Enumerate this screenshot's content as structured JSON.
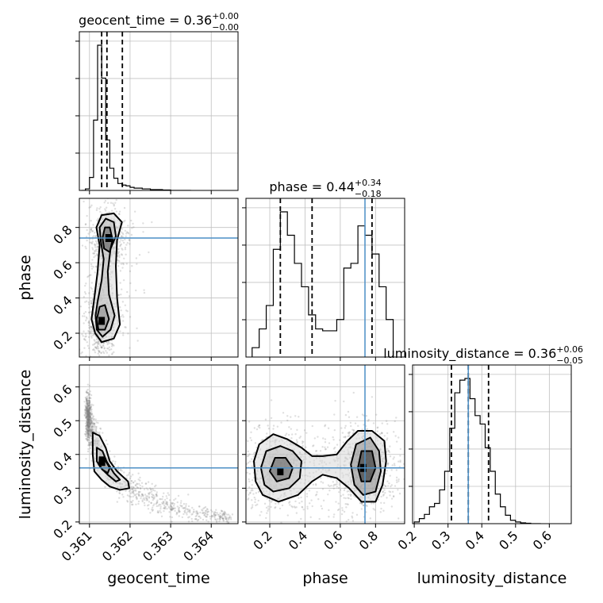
{
  "chart_data": {
    "type": "corner",
    "colors": {
      "truth": "#4c8fc5",
      "hist": "#000000",
      "grid": "#c0c0c0",
      "points": "#808080"
    },
    "params": [
      "geocent_time",
      "phase",
      "luminosity_distance"
    ],
    "truths": {
      "phase": 0.74,
      "luminosity_distance": 0.36
    },
    "ranges": {
      "geocent_time": [
        0.36075,
        0.36466
      ],
      "phase": [
        0.065,
        0.965
      ],
      "luminosity_distance": [
        0.195,
        0.665
      ]
    },
    "ticks": {
      "geocent_time": [
        {
          "v": 0.361,
          "label": "0.361"
        },
        {
          "v": 0.362,
          "label": "0.362"
        },
        {
          "v": 0.363,
          "label": "0.363"
        },
        {
          "v": 0.364,
          "label": "0.364"
        }
      ],
      "phase": [
        {
          "v": 0.2,
          "label": "0.2"
        },
        {
          "v": 0.4,
          "label": "0.4"
        },
        {
          "v": 0.6,
          "label": "0.6"
        },
        {
          "v": 0.8,
          "label": "0.8"
        }
      ],
      "luminosity_distance": [
        {
          "v": 0.2,
          "label": "0.2"
        },
        {
          "v": 0.3,
          "label": "0.3"
        },
        {
          "v": 0.4,
          "label": "0.4"
        },
        {
          "v": 0.5,
          "label": "0.5"
        },
        {
          "v": 0.6,
          "label": "0.6"
        }
      ]
    },
    "diag": [
      {
        "param": "geocent_time",
        "title": {
          "main": "geocent_time = 0.36",
          "sup": "+0.00",
          "sub": "−0.00"
        },
        "quantiles": [
          0.3613,
          0.36143,
          0.36181
        ],
        "bins": [
          0.3608,
          0.3609,
          0.361,
          0.3611,
          0.3612,
          0.3613,
          0.3614,
          0.3615,
          0.3616,
          0.3617,
          0.3618,
          0.3619,
          0.362,
          0.3621,
          0.3622,
          0.3623,
          0.3624,
          0.3625,
          0.3626,
          0.3627,
          0.3628,
          0.3629,
          0.363,
          0.3631,
          0.3632,
          0.3633,
          0.3634,
          0.3635
        ],
        "counts": [
          0,
          2,
          17,
          92,
          190,
          147,
          66,
          29,
          16,
          9,
          7,
          6,
          4,
          3,
          3,
          2,
          2,
          1,
          1,
          1,
          0.5,
          0.5,
          0,
          0,
          0,
          0,
          0
        ]
      },
      {
        "param": "phase",
        "title": {
          "main": "phase = 0.44",
          "sup": "+0.34",
          "sub": "−0.18"
        },
        "quantiles": [
          0.26,
          0.44,
          0.78
        ],
        "bins": [
          0.1,
          0.14,
          0.18,
          0.22,
          0.26,
          0.3,
          0.34,
          0.38,
          0.42,
          0.46,
          0.5,
          0.54,
          0.58,
          0.62,
          0.66,
          0.7,
          0.74,
          0.78,
          0.82,
          0.86,
          0.9
        ],
        "counts": [
          10,
          30,
          55,
          115,
          155,
          130,
          100,
          75,
          45,
          30,
          28,
          28,
          40,
          95,
          100,
          140,
          130,
          110,
          75,
          40
        ]
      },
      {
        "param": "luminosity_distance",
        "title": {
          "main": "luminosity_distance = 0.36",
          "sup": "+0.06",
          "sub": "−0.05"
        },
        "quantiles": [
          0.31,
          0.36,
          0.42
        ],
        "bins": [
          0.2,
          0.215,
          0.23,
          0.245,
          0.26,
          0.275,
          0.29,
          0.305,
          0.32,
          0.335,
          0.35,
          0.365,
          0.38,
          0.395,
          0.41,
          0.425,
          0.44,
          0.455,
          0.47,
          0.485,
          0.5,
          0.515,
          0.53,
          0.545,
          0.56,
          0.575
        ],
        "counts": [
          2,
          6,
          11,
          20,
          24,
          40,
          62,
          113,
          155,
          170,
          172,
          148,
          128,
          118,
          90,
          62,
          35,
          20,
          10,
          4,
          2,
          1,
          0.5,
          0,
          0
        ]
      }
    ],
    "offdiag": [
      {
        "x": "geocent_time",
        "y": "phase",
        "modes": [
          {
            "x": 0.36147,
            "y": 0.74,
            "sx": 0.00012,
            "sy": 0.055,
            "w": 0.45
          },
          {
            "x": 0.3613,
            "y": 0.27,
            "sx": 0.00012,
            "sy": 0.07,
            "w": 0.55
          }
        ],
        "scatter_spread": {
          "sx": 0.00055,
          "sy": 0.18
        },
        "contours": [
          [
            [
              0.36114,
              0.2
            ],
            [
              0.3613,
              0.15
            ],
            [
              0.3616,
              0.17
            ],
            [
              0.36175,
              0.25
            ],
            [
              0.36168,
              0.4
            ],
            [
              0.36165,
              0.58
            ],
            [
              0.36168,
              0.73
            ],
            [
              0.3618,
              0.83
            ],
            [
              0.3616,
              0.88
            ],
            [
              0.3613,
              0.87
            ],
            [
              0.36117,
              0.8
            ],
            [
              0.36125,
              0.7
            ],
            [
              0.3612,
              0.55
            ],
            [
              0.36112,
              0.4
            ],
            [
              0.36105,
              0.28
            ]
          ],
          [
            [
              0.36118,
              0.22
            ],
            [
              0.36132,
              0.18
            ],
            [
              0.36152,
              0.22
            ],
            [
              0.36162,
              0.3
            ],
            [
              0.36148,
              0.42
            ],
            [
              0.36145,
              0.55
            ],
            [
              0.36152,
              0.68
            ],
            [
              0.36165,
              0.75
            ],
            [
              0.3616,
              0.83
            ],
            [
              0.3614,
              0.85
            ],
            [
              0.36125,
              0.8
            ],
            [
              0.36128,
              0.72
            ],
            [
              0.36135,
              0.62
            ],
            [
              0.3613,
              0.5
            ],
            [
              0.3612,
              0.38
            ],
            [
              0.36115,
              0.3
            ]
          ],
          [
            [
              0.36122,
              0.22
            ],
            [
              0.36138,
              0.22
            ],
            [
              0.36148,
              0.28
            ],
            [
              0.36138,
              0.36
            ],
            [
              0.36125,
              0.35
            ],
            [
              0.36118,
              0.28
            ]
          ],
          [
            [
              0.36136,
              0.68
            ],
            [
              0.3615,
              0.66
            ],
            [
              0.36157,
              0.73
            ],
            [
              0.3615,
              0.8
            ],
            [
              0.36138,
              0.8
            ],
            [
              0.36132,
              0.74
            ]
          ]
        ]
      },
      {
        "x": "geocent_time",
        "y": "luminosity_distance",
        "curve": [
          [
            0.36095,
            0.52
          ],
          [
            0.361,
            0.49
          ],
          [
            0.36115,
            0.44
          ],
          [
            0.3613,
            0.39
          ],
          [
            0.3615,
            0.35
          ],
          [
            0.3618,
            0.315
          ],
          [
            0.3622,
            0.285
          ],
          [
            0.3626,
            0.265
          ],
          [
            0.363,
            0.25
          ],
          [
            0.3634,
            0.235
          ],
          [
            0.3638,
            0.225
          ],
          [
            0.3642,
            0.215
          ],
          [
            0.3645,
            0.208
          ]
        ],
        "contours": [
          [
            [
              0.36108,
              0.465
            ],
            [
              0.36125,
              0.455
            ],
            [
              0.3614,
              0.42
            ],
            [
              0.3615,
              0.38
            ],
            [
              0.36168,
              0.35
            ],
            [
              0.36195,
              0.32
            ],
            [
              0.36198,
              0.3
            ],
            [
              0.36175,
              0.295
            ],
            [
              0.3615,
              0.305
            ],
            [
              0.3613,
              0.325
            ],
            [
              0.36112,
              0.35
            ],
            [
              0.36108,
              0.4
            ]
          ],
          [
            [
              0.36118,
              0.42
            ],
            [
              0.36132,
              0.41
            ],
            [
              0.36142,
              0.38
            ],
            [
              0.3616,
              0.345
            ],
            [
              0.36175,
              0.325
            ],
            [
              0.36165,
              0.32
            ],
            [
              0.36145,
              0.34
            ],
            [
              0.36128,
              0.36
            ],
            [
              0.36118,
              0.38
            ]
          ],
          [
            [
              0.36125,
              0.39
            ],
            [
              0.3614,
              0.38
            ],
            [
              0.3615,
              0.36
            ],
            [
              0.36145,
              0.345
            ],
            [
              0.36132,
              0.355
            ],
            [
              0.36124,
              0.37
            ]
          ]
        ]
      },
      {
        "x": "phase",
        "y": "luminosity_distance",
        "modes": [
          {
            "x": 0.26,
            "y": 0.35,
            "sx": 0.075,
            "sy": 0.04,
            "w": 0.5
          },
          {
            "x": 0.73,
            "y": 0.36,
            "sx": 0.06,
            "sy": 0.045,
            "w": 0.5
          }
        ],
        "scatter_spread": {
          "sx": 0.3,
          "sy": 0.07
        },
        "contours": [
          [
            [
              0.11,
              0.38
            ],
            [
              0.14,
              0.43
            ],
            [
              0.22,
              0.46
            ],
            [
              0.3,
              0.445
            ],
            [
              0.38,
              0.42
            ],
            [
              0.44,
              0.395
            ],
            [
              0.5,
              0.395
            ],
            [
              0.58,
              0.4
            ],
            [
              0.64,
              0.44
            ],
            [
              0.7,
              0.47
            ],
            [
              0.78,
              0.47
            ],
            [
              0.85,
              0.44
            ],
            [
              0.86,
              0.38
            ],
            [
              0.84,
              0.31
            ],
            [
              0.8,
              0.26
            ],
            [
              0.72,
              0.26
            ],
            [
              0.65,
              0.3
            ],
            [
              0.58,
              0.33
            ],
            [
              0.5,
              0.34
            ],
            [
              0.44,
              0.32
            ],
            [
              0.36,
              0.28
            ],
            [
              0.25,
              0.26
            ],
            [
              0.16,
              0.28
            ],
            [
              0.12,
              0.32
            ]
          ],
          [
            [
              0.15,
              0.36
            ],
            [
              0.18,
              0.41
            ],
            [
              0.26,
              0.425
            ],
            [
              0.33,
              0.41
            ],
            [
              0.38,
              0.38
            ],
            [
              0.37,
              0.33
            ],
            [
              0.31,
              0.3
            ],
            [
              0.22,
              0.29
            ],
            [
              0.17,
              0.31
            ]
          ],
          [
            [
              0.66,
              0.37
            ],
            [
              0.69,
              0.43
            ],
            [
              0.77,
              0.45
            ],
            [
              0.82,
              0.41
            ],
            [
              0.83,
              0.35
            ],
            [
              0.8,
              0.29
            ],
            [
              0.73,
              0.28
            ],
            [
              0.68,
              0.31
            ]
          ],
          [
            [
              0.2,
              0.35
            ],
            [
              0.23,
              0.39
            ],
            [
              0.29,
              0.39
            ],
            [
              0.33,
              0.36
            ],
            [
              0.31,
              0.33
            ],
            [
              0.24,
              0.32
            ]
          ],
          [
            [
              0.7,
              0.36
            ],
            [
              0.72,
              0.41
            ],
            [
              0.78,
              0.41
            ],
            [
              0.8,
              0.36
            ],
            [
              0.77,
              0.32
            ],
            [
              0.72,
              0.32
            ]
          ]
        ]
      }
    ]
  }
}
